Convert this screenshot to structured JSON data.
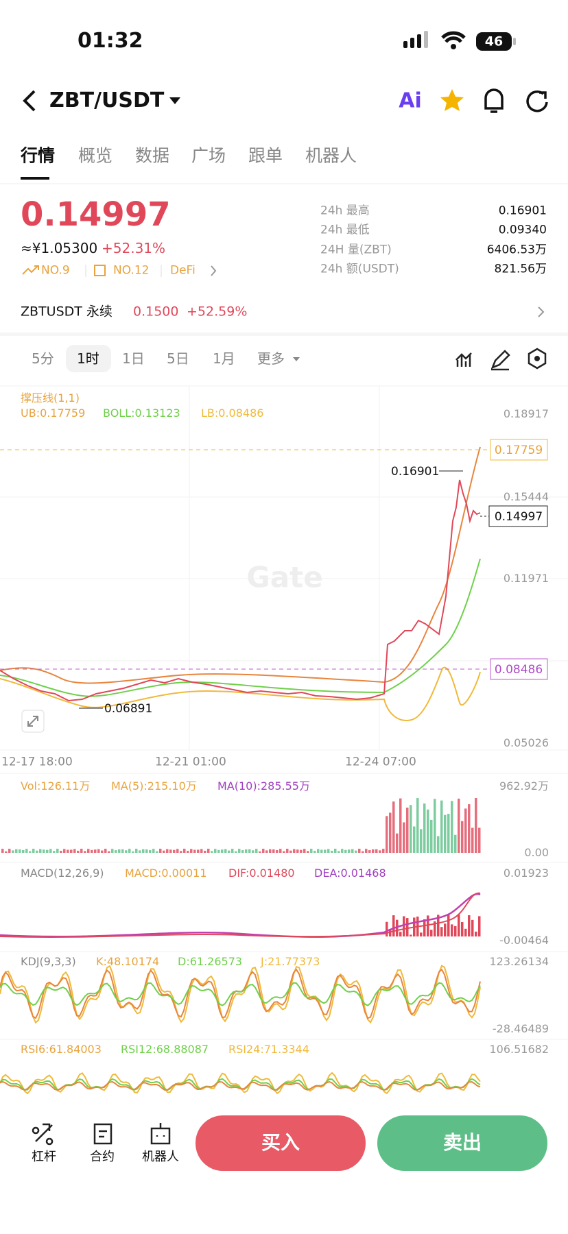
{
  "status": {
    "time": "01:32",
    "battery": "46"
  },
  "header": {
    "pair": "ZBT/USDT",
    "ai": "Ai"
  },
  "tabs": [
    "行情",
    "概览",
    "数据",
    "广场",
    "跟单",
    "机器人"
  ],
  "ticker": {
    "price": "0.14997",
    "cny": "≈¥1.05300",
    "change": "+52.31%",
    "tags": [
      "NO.9",
      "NO.12",
      "DeFi"
    ]
  },
  "stats": [
    {
      "label": "24h  最高",
      "value": "0.16901"
    },
    {
      "label": "24h  最低",
      "value": "0.09340"
    },
    {
      "label": "24H  量(ZBT)",
      "value": "6406.53万"
    },
    {
      "label": "24h  额(USDT)",
      "value": "821.56万"
    }
  ],
  "perpetual": {
    "name": "ZBTUSDT 永续",
    "price": "0.1500",
    "change": "+52.59%"
  },
  "intervals": [
    "5分",
    "1时",
    "1日",
    "5日",
    "1月",
    "更多"
  ],
  "price_chart": {
    "indicator": "撑压线(1,1)",
    "ub": "UB:0.17759",
    "boll": "BOLL:0.13123",
    "lb": "LB:0.08486",
    "axis": [
      "0.18917",
      "0.15444",
      "0.11971",
      "0.05026"
    ],
    "tags": {
      "ub": "0.17759",
      "last": "0.14997",
      "lb": "0.08486"
    },
    "high": "0.16901",
    "low": "0.06891",
    "watermark": "Gate",
    "dates": [
      "12-17 18:00",
      "12-21 01:00",
      "12-24 07:00"
    ]
  },
  "volume": {
    "labels": [
      "Vol:126.11万",
      "MA(5):215.10万",
      "MA(10):285.55万"
    ],
    "axis": [
      "962.92万",
      "0.00"
    ]
  },
  "macd": {
    "labels": [
      "MACD(12,26,9)",
      "MACD:0.00011",
      "DIF:0.01480",
      "DEA:0.01468"
    ],
    "axis": [
      "0.01923",
      "-0.00464"
    ]
  },
  "kdj": {
    "labels": [
      "KDJ(9,3,3)",
      "K:48.10174",
      "D:61.26573",
      "J:21.77373"
    ],
    "axis": [
      "123.26134",
      "-28.46489"
    ]
  },
  "rsi": {
    "labels": [
      "RSI6:61.84003",
      "RSI12:68.88087",
      "RSI24:71.3344"
    ],
    "axis": [
      "106.51682"
    ]
  },
  "bottom": {
    "tools": [
      "杠杆",
      "合约",
      "机器人"
    ],
    "buy": "买入",
    "sell": "卖出"
  }
}
